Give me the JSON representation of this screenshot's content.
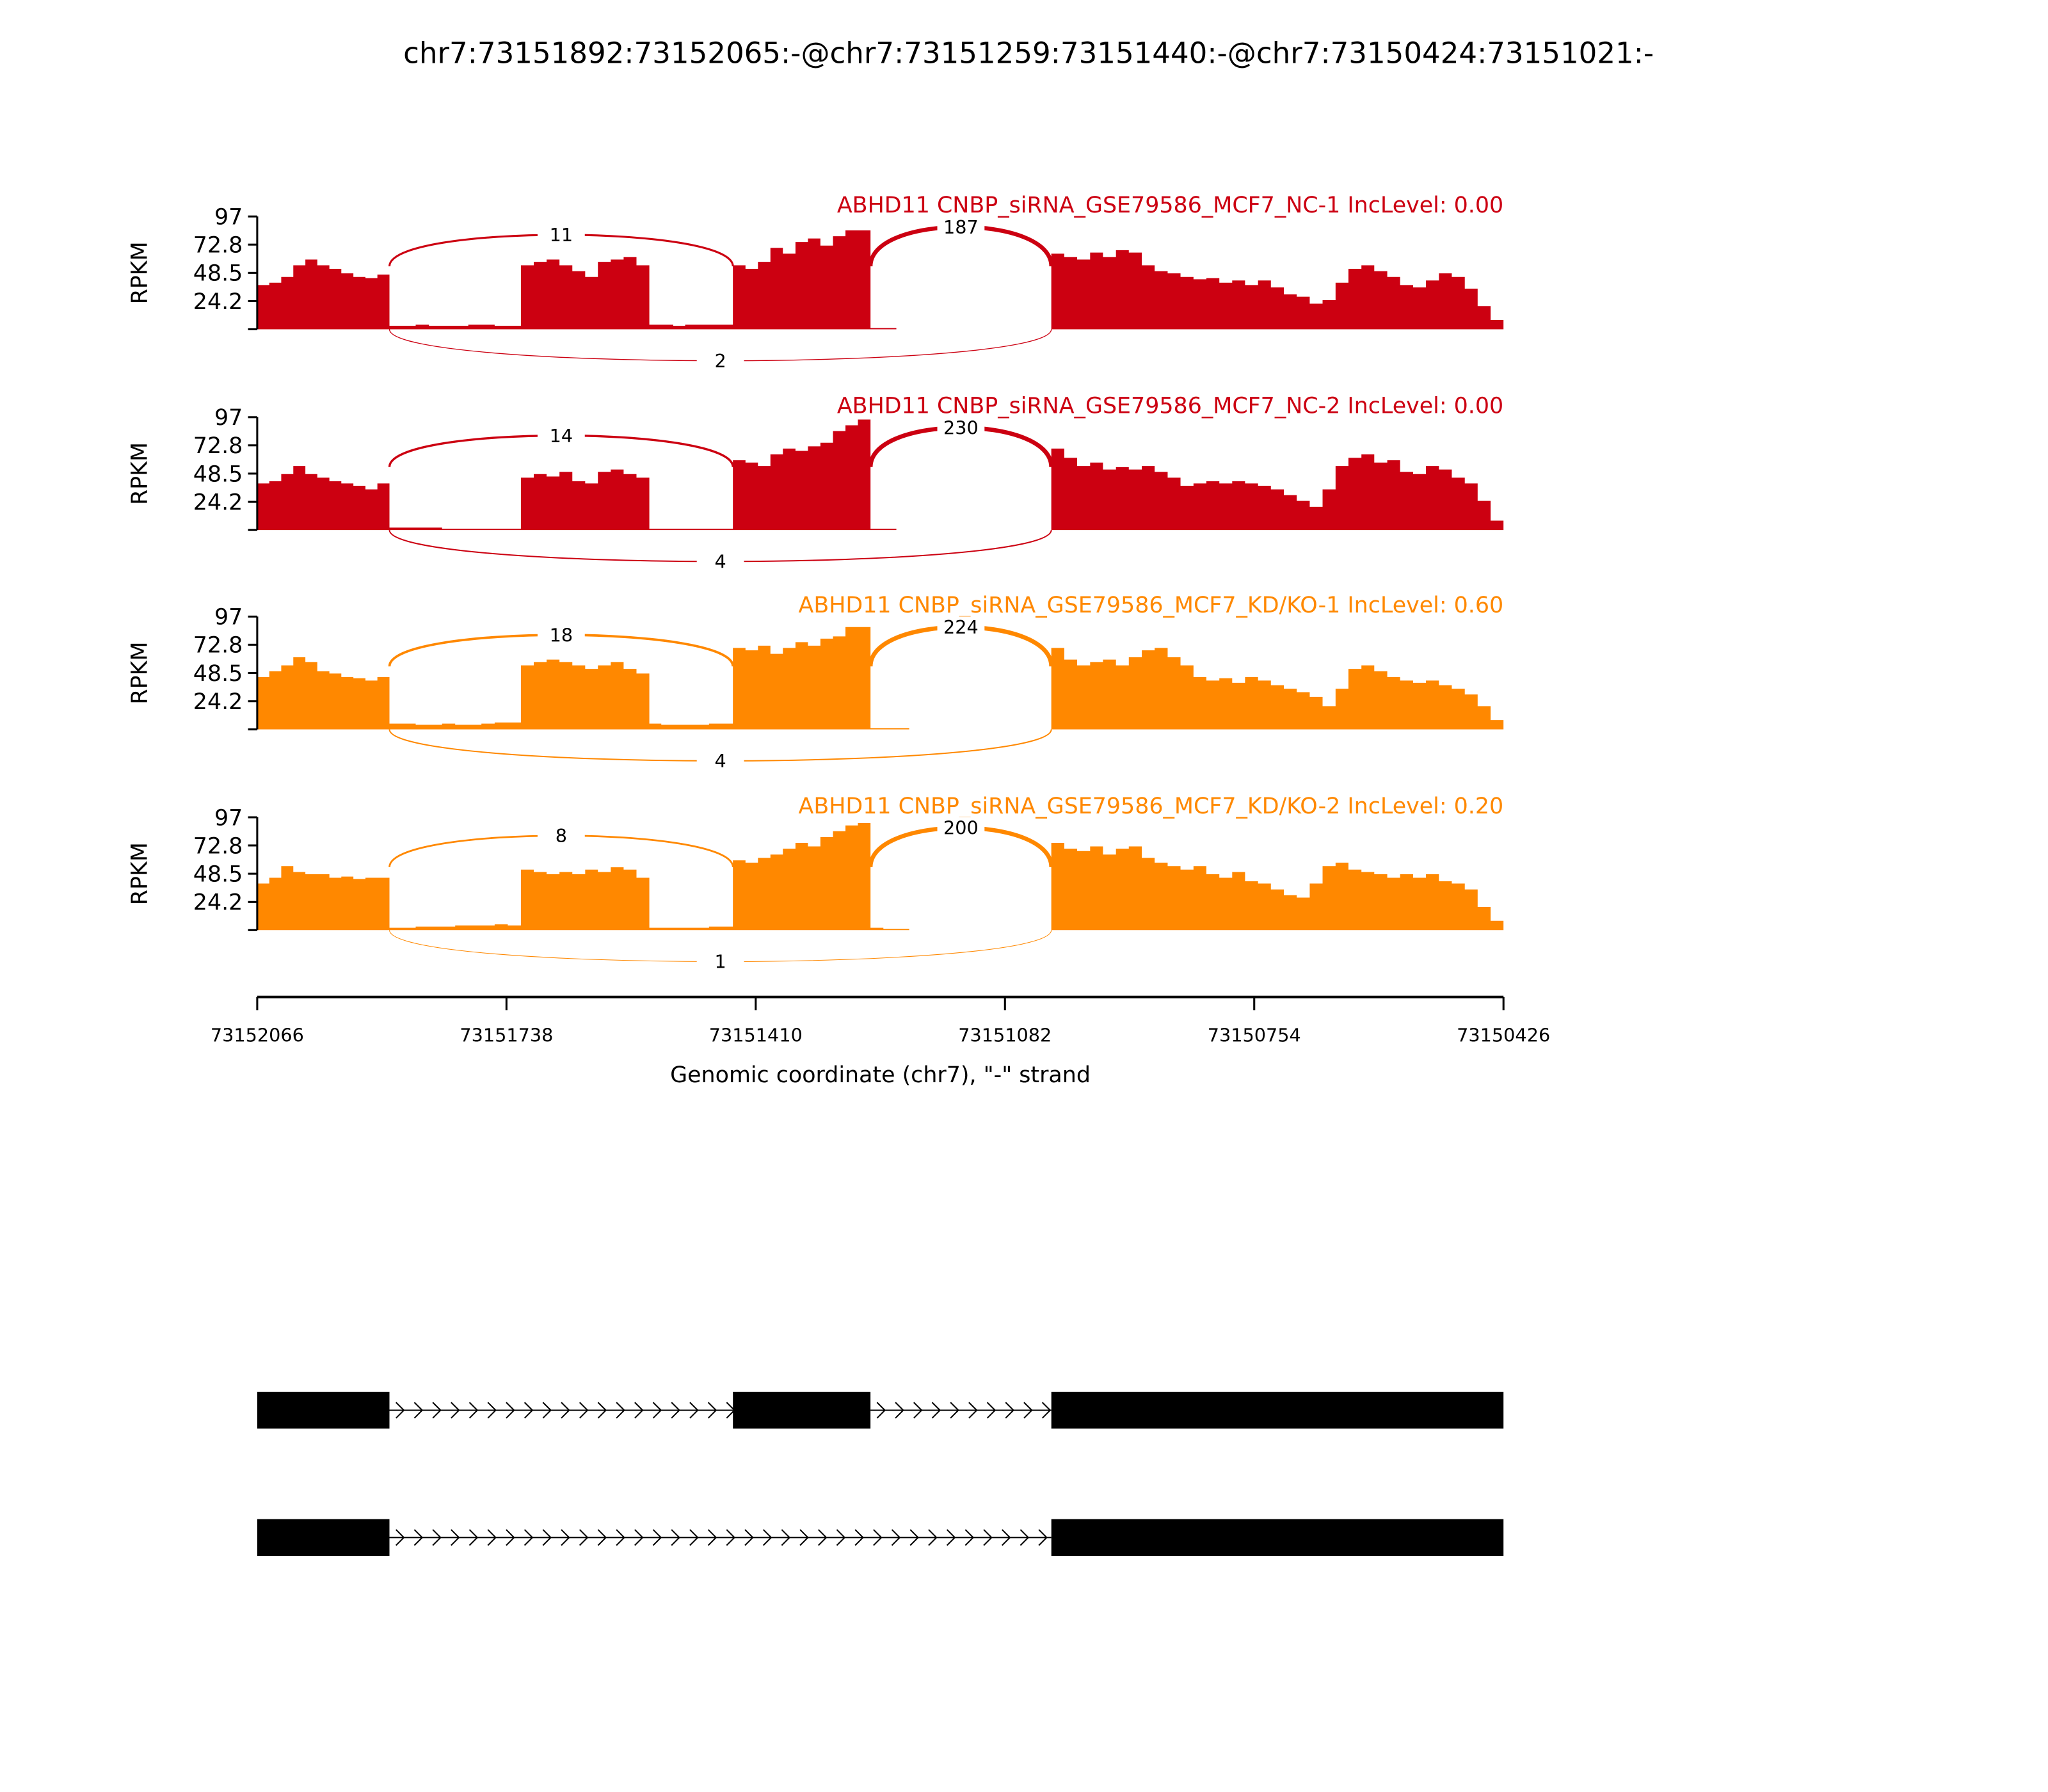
{
  "chart_data": {
    "type": "area",
    "title": "chr7:73151892:73152065:-@chr7:73151259:73151440:-@chr7:73150424:73151021:-",
    "xlabel": "Genomic coordinate (chr7), \"-\" strand",
    "ylabel": "RPKM",
    "xlim": [
      73152066,
      73150426
    ],
    "xticks": [
      "73152066",
      "73151738",
      "73151410",
      "73151082",
      "73150754",
      "73150426"
    ],
    "xtick_values": [
      73152066,
      73151738,
      73151410,
      73151082,
      73150754,
      73150426
    ],
    "ylim": [
      0,
      97
    ],
    "yticks": [
      0,
      24.2,
      48.5,
      72.8,
      97
    ],
    "ytick_labels": [
      "",
      "24.2",
      "48.5",
      "72.8",
      "97"
    ],
    "segments": [
      [
        73152066,
        73151892
      ],
      [
        73151892,
        73151719
      ],
      [
        73151719,
        73151550
      ],
      [
        73151550,
        73151440
      ],
      [
        73151440,
        73151259
      ],
      [
        73151259,
        73151021
      ],
      [
        73151021,
        73150426
      ]
    ],
    "tracks": [
      {
        "title": "ABHD11 CNBP_siRNA_GSE79586_MCF7_NC-1 IncLevel: 0.00",
        "color": "#cc0011",
        "coverage": [
          [
            38,
            40,
            45,
            55,
            60,
            55,
            52,
            48,
            45,
            44,
            47
          ],
          [
            3,
            3,
            4,
            3,
            3,
            3,
            4,
            4,
            3,
            3
          ],
          [
            55,
            58,
            60,
            55,
            50,
            45,
            58,
            60,
            62,
            55
          ],
          [
            4,
            4,
            3,
            4,
            4,
            4,
            4
          ],
          [
            55,
            52,
            58,
            70,
            65,
            75,
            78,
            72,
            80,
            85,
            85
          ],
          [
            1,
            1,
            0,
            0,
            0,
            0,
            0,
            0,
            0,
            0,
            0,
            0,
            0,
            0
          ],
          [
            65,
            62,
            60,
            66,
            62,
            68,
            66,
            55,
            50,
            48,
            45,
            43,
            44,
            40,
            42,
            38,
            42,
            36,
            30,
            28,
            22,
            25,
            40,
            52,
            55,
            50,
            45,
            38,
            36,
            42,
            48,
            45,
            35,
            20,
            8
          ]
        ],
        "junctions": [
          {
            "from": 73151892,
            "to": 73151440,
            "count": "11",
            "side": "above"
          },
          {
            "from": 73151259,
            "to": 73151021,
            "count": "187",
            "side": "above"
          },
          {
            "from": 73151892,
            "to": 73151021,
            "count": "2",
            "side": "below"
          }
        ]
      },
      {
        "title": "ABHD11 CNBP_siRNA_GSE79586_MCF7_NC-2 IncLevel: 0.00",
        "color": "#cc0011",
        "coverage": [
          [
            40,
            42,
            48,
            55,
            48,
            45,
            42,
            40,
            38,
            35,
            40
          ],
          [
            2,
            2,
            2,
            2,
            1,
            1,
            1,
            1,
            1,
            1
          ],
          [
            45,
            48,
            46,
            50,
            42,
            40,
            50,
            52,
            48,
            45
          ],
          [
            1,
            1,
            1,
            1,
            1,
            1,
            1
          ],
          [
            60,
            58,
            55,
            65,
            70,
            68,
            72,
            75,
            85,
            90,
            95
          ],
          [
            1,
            1,
            0,
            0,
            0,
            0,
            0,
            0,
            0,
            0,
            0,
            0,
            0,
            0
          ],
          [
            70,
            62,
            55,
            58,
            52,
            54,
            52,
            55,
            50,
            45,
            38,
            40,
            42,
            40,
            42,
            40,
            38,
            35,
            30,
            25,
            20,
            35,
            55,
            62,
            65,
            58,
            60,
            50,
            48,
            55,
            52,
            45,
            40,
            25,
            8
          ]
        ],
        "junctions": [
          {
            "from": 73151892,
            "to": 73151440,
            "count": "14",
            "side": "above"
          },
          {
            "from": 73151259,
            "to": 73151021,
            "count": "230",
            "side": "above"
          },
          {
            "from": 73151892,
            "to": 73151021,
            "count": "4",
            "side": "below"
          }
        ]
      },
      {
        "title": "ABHD11 CNBP_siRNA_GSE79586_MCF7_KD/KO-1 IncLevel: 0.60",
        "color": "#ff8800",
        "coverage": [
          [
            45,
            50,
            55,
            62,
            58,
            50,
            48,
            45,
            44,
            42,
            45
          ],
          [
            5,
            5,
            4,
            4,
            5,
            4,
            4,
            5,
            6,
            6
          ],
          [
            55,
            58,
            60,
            58,
            55,
            52,
            55,
            58,
            52,
            48
          ],
          [
            5,
            4,
            4,
            4,
            4,
            5,
            5
          ],
          [
            70,
            68,
            72,
            65,
            70,
            75,
            72,
            78,
            80,
            88,
            88
          ],
          [
            1,
            1,
            1,
            0,
            0,
            0,
            0,
            0,
            0,
            0,
            0,
            0,
            0,
            0
          ],
          [
            70,
            60,
            55,
            58,
            60,
            55,
            62,
            68,
            70,
            62,
            55,
            45,
            42,
            44,
            40,
            45,
            42,
            38,
            35,
            32,
            28,
            20,
            35,
            52,
            55,
            50,
            45,
            42,
            40,
            42,
            38,
            35,
            30,
            20,
            8
          ]
        ],
        "junctions": [
          {
            "from": 73151892,
            "to": 73151440,
            "count": "18",
            "side": "above"
          },
          {
            "from": 73151259,
            "to": 73151021,
            "count": "224",
            "side": "above"
          },
          {
            "from": 73151892,
            "to": 73151021,
            "count": "4",
            "side": "below"
          }
        ]
      },
      {
        "title": "ABHD11 CNBP_siRNA_GSE79586_MCF7_KD/KO-2 IncLevel: 0.20",
        "color": "#ff8800",
        "coverage": [
          [
            40,
            45,
            55,
            50,
            48,
            48,
            45,
            46,
            44,
            45,
            45
          ],
          [
            2,
            2,
            3,
            3,
            3,
            4,
            4,
            4,
            5,
            4
          ],
          [
            52,
            50,
            48,
            50,
            48,
            52,
            50,
            54,
            52,
            45
          ],
          [
            2,
            2,
            2,
            2,
            2,
            3,
            3
          ],
          [
            60,
            58,
            62,
            65,
            70,
            75,
            72,
            80,
            85,
            90,
            92
          ],
          [
            2,
            1,
            1,
            0,
            0,
            0,
            0,
            0,
            0,
            0,
            0,
            0,
            0,
            0
          ],
          [
            75,
            70,
            68,
            72,
            65,
            70,
            72,
            62,
            58,
            55,
            52,
            55,
            48,
            45,
            50,
            42,
            40,
            35,
            30,
            28,
            40,
            55,
            58,
            52,
            50,
            48,
            45,
            48,
            45,
            48,
            42,
            40,
            35,
            20,
            8
          ]
        ],
        "junctions": [
          {
            "from": 73151892,
            "to": 73151440,
            "count": "8",
            "side": "above"
          },
          {
            "from": 73151259,
            "to": 73151021,
            "count": "200",
            "side": "above"
          },
          {
            "from": 73151892,
            "to": 73151021,
            "count": "1",
            "side": "below"
          }
        ]
      }
    ],
    "transcripts": [
      {
        "exons": [
          [
            73152066,
            73151892
          ],
          [
            73151440,
            73151259
          ],
          [
            73151021,
            73150426
          ]
        ]
      },
      {
        "exons": [
          [
            73152066,
            73151892
          ],
          [
            73151021,
            73150426
          ]
        ]
      }
    ]
  }
}
